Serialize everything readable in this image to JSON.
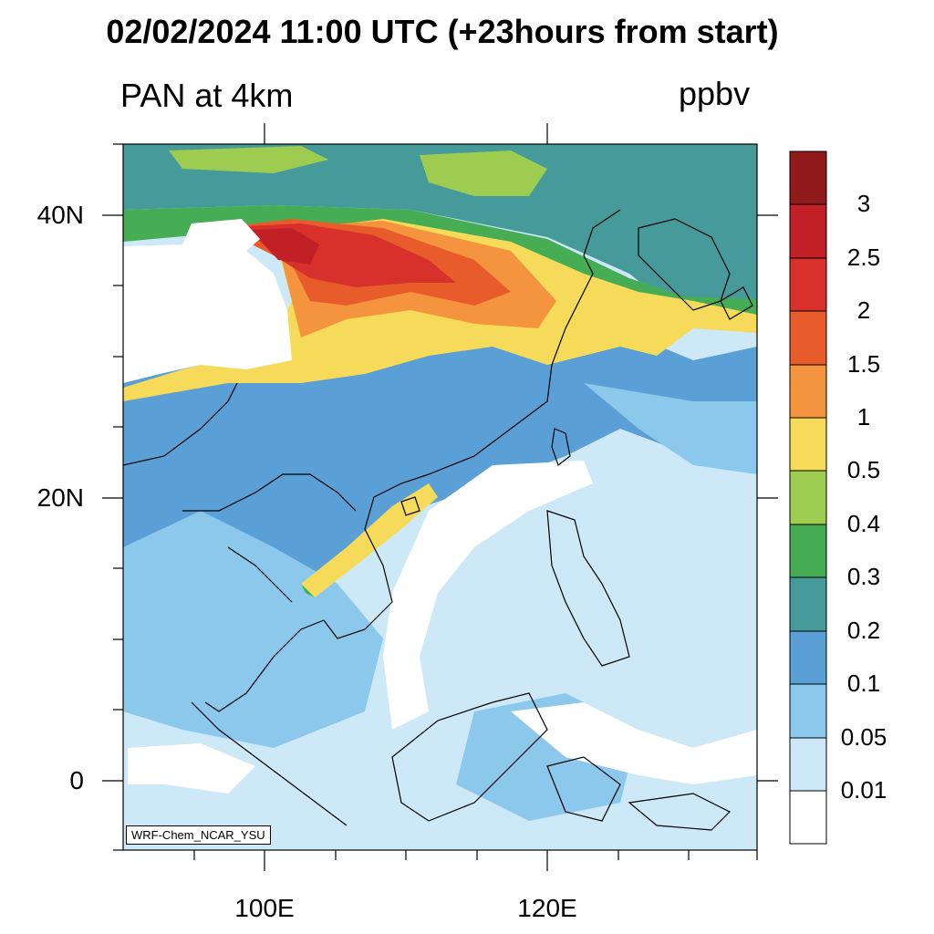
{
  "header": {
    "title": "02/02/2024 11:00 UTC (+23hours from start)",
    "variable": "PAN at 4km",
    "units": "ppbv"
  },
  "map": {
    "lat_labels": [
      "40N",
      "20N",
      "0"
    ],
    "lon_labels": [
      "100E",
      "120E"
    ],
    "credit": "WRF-Chem_NCAR_YSU",
    "colors": {
      "white": "#ffffff",
      "c001": "#cde8f7",
      "c005": "#8cc8ec",
      "c01": "#5a9fd6",
      "c02": "#479a9a",
      "c03": "#46ad54",
      "c04": "#9dcc50",
      "c05": "#f6db5a",
      "c1": "#f5943f",
      "c15": "#e85c2b",
      "c2": "#d8302b",
      "c25": "#c02026",
      "c3": "#901a1c",
      "land_line": "#000000"
    }
  },
  "colorbar": {
    "labels": [
      "3",
      "2.5",
      "2",
      "1.5",
      "1",
      "0.5",
      "0.4",
      "0.3",
      "0.2",
      "0.1",
      "0.05",
      "0.01"
    ],
    "colors": [
      "#901a1c",
      "#c02026",
      "#d8302b",
      "#e85c2b",
      "#f5943f",
      "#f6db5a",
      "#9dcc50",
      "#46ad54",
      "#479a9a",
      "#5a9fd6",
      "#8cc8ec",
      "#cde8f7",
      "#ffffff"
    ]
  }
}
